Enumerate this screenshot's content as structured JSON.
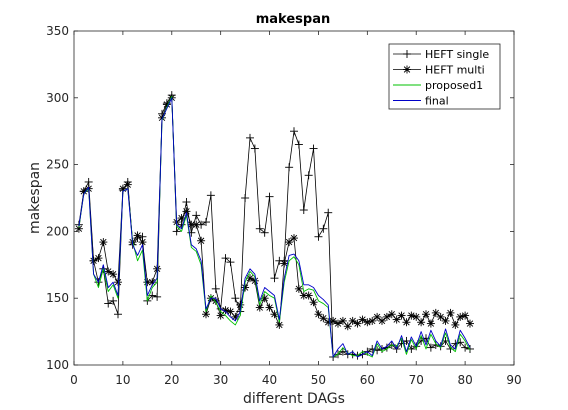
{
  "chart_data": {
    "type": "line",
    "title": "makespan",
    "xlabel": "different DAGs",
    "ylabel": "makespan",
    "xlim": [
      0,
      90
    ],
    "ylim": [
      100,
      350
    ],
    "xticks": [
      0,
      10,
      20,
      30,
      40,
      50,
      60,
      70,
      80,
      90
    ],
    "yticks": [
      100,
      150,
      200,
      250,
      300,
      350
    ],
    "grid": false,
    "legend_position": "top-right",
    "x": [
      1,
      2,
      3,
      4,
      5,
      6,
      7,
      8,
      9,
      10,
      11,
      12,
      13,
      14,
      15,
      16,
      17,
      18,
      19,
      20,
      21,
      22,
      23,
      24,
      25,
      26,
      27,
      28,
      29,
      30,
      31,
      32,
      33,
      34,
      35,
      36,
      37,
      38,
      39,
      40,
      41,
      42,
      43,
      44,
      45,
      46,
      47,
      48,
      49,
      50,
      51,
      52,
      53,
      54,
      55,
      56,
      57,
      58,
      59,
      60,
      61,
      62,
      63,
      64,
      65,
      66,
      67,
      68,
      69,
      70,
      71,
      72,
      73,
      74,
      75,
      76,
      77,
      78,
      79,
      80,
      81
    ],
    "series": [
      {
        "name": "HEFT single",
        "color": "#000000",
        "marker": "plus",
        "values": [
          205,
          230,
          237,
          178,
          162,
          172,
          146,
          148,
          138,
          231,
          237,
          190,
          195,
          196,
          148,
          152,
          151,
          288,
          296,
          302,
          200,
          205,
          222,
          199,
          212,
          205,
          207,
          227,
          157,
          142,
          180,
          177,
          150,
          140,
          225,
          270,
          262,
          202,
          199,
          226,
          165,
          178,
          178,
          248,
          275,
          265,
          216,
          242,
          262,
          196,
          202,
          214,
          106,
          108,
          110,
          108,
          108,
          107,
          108,
          110,
          112,
          111,
          112,
          113,
          115,
          112,
          116,
          118,
          112,
          114,
          118,
          120,
          113,
          115,
          114,
          118,
          112,
          116,
          117,
          113,
          112
        ],
        "line_width": 0.8
      },
      {
        "name": "HEFT multi",
        "color": "#000000",
        "marker": "star",
        "values": [
          202,
          230,
          232,
          178,
          180,
          192,
          170,
          168,
          162,
          232,
          235,
          192,
          197,
          192,
          162,
          162,
          172,
          285,
          295,
          300,
          207,
          210,
          215,
          205,
          205,
          193,
          138,
          150,
          148,
          137,
          141,
          140,
          136,
          145,
          158,
          165,
          163,
          143,
          150,
          143,
          138,
          130,
          176,
          192,
          195,
          157,
          152,
          152,
          147,
          138,
          135,
          132,
          133,
          131,
          133,
          129,
          133,
          131,
          134,
          132,
          133,
          136,
          133,
          136,
          138,
          134,
          137,
          132,
          137,
          136,
          132,
          138,
          131,
          139,
          136,
          133,
          139,
          130,
          136,
          137,
          131
        ],
        "line_width": 0.8
      },
      {
        "name": "proposed1",
        "color": "#00c000",
        "marker": "none",
        "values": [
          203,
          228,
          232,
          168,
          158,
          172,
          155,
          160,
          150,
          230,
          232,
          192,
          178,
          186,
          148,
          158,
          162,
          283,
          293,
          301,
          204,
          200,
          212,
          188,
          185,
          175,
          140,
          152,
          147,
          140,
          137,
          133,
          130,
          137,
          162,
          170,
          166,
          145,
          155,
          152,
          150,
          132,
          162,
          178,
          181,
          175,
          155,
          157,
          156,
          148,
          146,
          143,
          106,
          108,
          113,
          109,
          107,
          107,
          110,
          108,
          106,
          116,
          110,
          112,
          115,
          114,
          120,
          108,
          119,
          112,
          122,
          112,
          123,
          116,
          113,
          124,
          113,
          110,
          123,
          118,
          111
        ],
        "line_width": 0.9
      },
      {
        "name": "final",
        "color": "#0000c8",
        "marker": "none",
        "values": [
          204,
          228,
          233,
          168,
          162,
          175,
          158,
          162,
          152,
          230,
          232,
          190,
          182,
          190,
          152,
          160,
          165,
          284,
          292,
          300,
          205,
          202,
          214,
          190,
          187,
          178,
          142,
          150,
          150,
          142,
          140,
          136,
          133,
          140,
          165,
          172,
          168,
          148,
          158,
          155,
          152,
          134,
          165,
          182,
          183,
          178,
          160,
          160,
          158,
          152,
          149,
          145,
          106,
          112,
          116,
          108,
          110,
          106,
          108,
          110,
          107,
          118,
          112,
          114,
          118,
          112,
          122,
          110,
          121,
          114,
          125,
          115,
          126,
          118,
          114,
          127,
          115,
          112,
          126,
          120,
          113
        ],
        "line_width": 0.9
      }
    ]
  }
}
